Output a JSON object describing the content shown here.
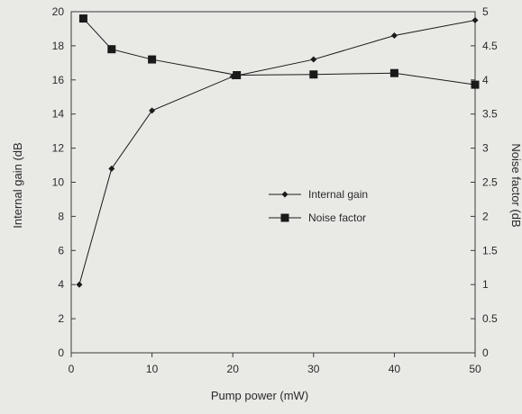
{
  "chart_data": {
    "type": "line",
    "title": "",
    "xlabel": "Pump power (mW)",
    "ylabel_left": "Internal gain (dB",
    "ylabel_right": "Noise factor (dB",
    "xlim": [
      0,
      50
    ],
    "ylim_left": [
      0,
      20
    ],
    "ylim_right": [
      0,
      5
    ],
    "x_ticks": [
      0,
      10,
      20,
      30,
      40,
      50
    ],
    "y_left_ticks": [
      0,
      2,
      4,
      6,
      8,
      10,
      12,
      14,
      16,
      18,
      20
    ],
    "y_right_ticks": [
      "0",
      "0.5",
      "1",
      "1.5",
      "2",
      "2.5",
      "3",
      "3.5",
      "4",
      "4.5",
      "5"
    ],
    "grid": false,
    "legend_position": "center-right",
    "series": [
      {
        "name": "Internal gain",
        "axis": "left",
        "marker": "diamond",
        "color": "#1a1a1a",
        "x": [
          1,
          5,
          10,
          20,
          30,
          40,
          50
        ],
        "y": [
          4.0,
          10.8,
          14.2,
          16.2,
          17.2,
          18.6,
          19.5
        ]
      },
      {
        "name": "Noise factor",
        "axis": "right",
        "marker": "square",
        "color": "#1a1a1a",
        "x": [
          1.5,
          5,
          10,
          20.5,
          30,
          40,
          50
        ],
        "y": [
          4.9,
          4.45,
          4.3,
          4.07,
          4.08,
          4.1,
          3.93
        ]
      }
    ]
  }
}
